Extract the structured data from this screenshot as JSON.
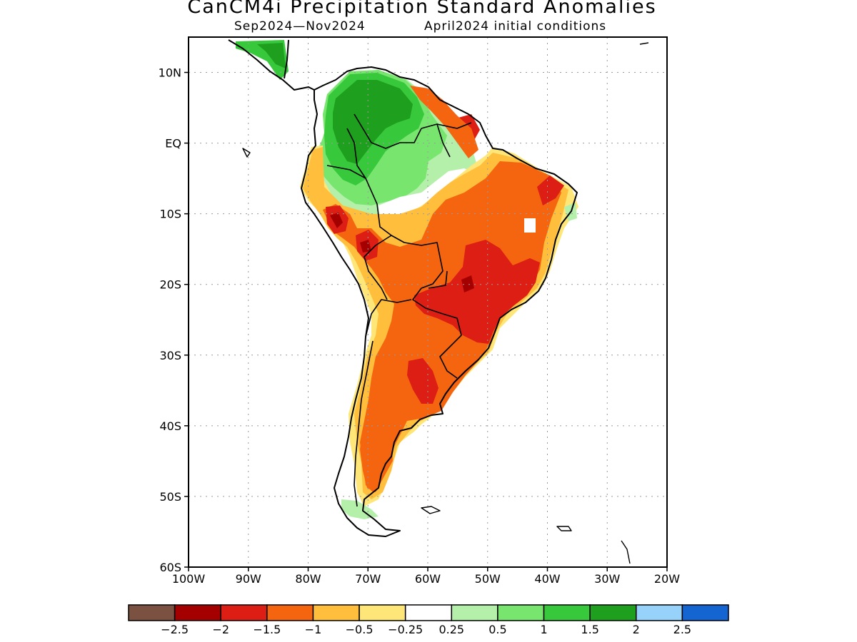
{
  "header": {
    "title": "CanCM4i Precipitation Standard Anomalies",
    "period": "Sep2024—Nov2024",
    "initial_conditions": "April2024 initial conditions"
  },
  "axes": {
    "lat_ticks": [
      "10N",
      "EQ",
      "10S",
      "20S",
      "30S",
      "40S",
      "50S",
      "60S"
    ],
    "lon_ticks": [
      "100W",
      "90W",
      "80W",
      "70W",
      "60W",
      "50W",
      "40W",
      "30W",
      "20W"
    ]
  },
  "colorbar": {
    "labels": [
      "−2.5",
      "−2",
      "−1.5",
      "−1",
      "−0.5",
      "−0.25",
      "0.25",
      "0.5",
      "1",
      "1.5",
      "2",
      "2.5"
    ],
    "colors": [
      "#7b5242",
      "#a50000",
      "#dc1e14",
      "#f5640f",
      "#ffbe3c",
      "#ffe678",
      "#ffffff",
      "#b4f0aa",
      "#78e66e",
      "#37c83c",
      "#1ea01e",
      "#96d2fa",
      "#1464d2"
    ]
  },
  "map": {
    "type": "filled_contour_map",
    "region": "South America",
    "lon_range": [
      "100W",
      "20W"
    ],
    "lat_range": [
      "15N",
      "60S"
    ],
    "grid": true,
    "colors": {
      "dry_extreme": "#a50000",
      "dry_strong": "#dc1e14",
      "dry_moderate": "#f5640f",
      "dry_weak": "#ffbe3c",
      "dry_slight": "#ffe678",
      "neutral": "#ffffff",
      "wet_slight": "#b4f0aa",
      "wet_weak": "#78e66e",
      "wet_moderate": "#37c83c",
      "wet_strong": "#1ea01e"
    }
  }
}
